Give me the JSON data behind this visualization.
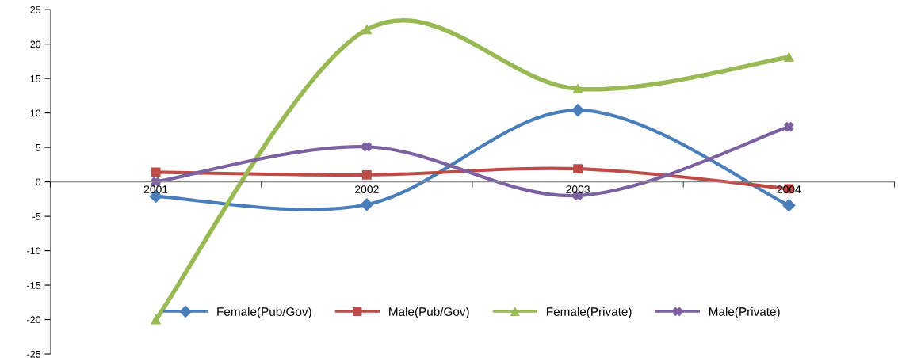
{
  "chart_data": {
    "type": "line",
    "categories": [
      "2001",
      "2002",
      "2003",
      "2004"
    ],
    "series": [
      {
        "name": "Female(Pub/Gov)",
        "color": "#4a7ebb",
        "marker": "diamond",
        "values": [
          -2.1,
          -3.3,
          10.4,
          -3.4
        ]
      },
      {
        "name": "Male(Pub/Gov)",
        "color": "#be4b48",
        "marker": "square",
        "values": [
          1.4,
          1.0,
          1.9,
          -1.0
        ]
      },
      {
        "name": "Female(Private)",
        "color": "#98b954",
        "marker": "triangle",
        "values": [
          -20,
          22.1,
          13.5,
          18.1
        ]
      },
      {
        "name": "Male(Private)",
        "color": "#7d60a0",
        "marker": "cross",
        "values": [
          0,
          5.1,
          -2.0,
          8.0
        ]
      }
    ],
    "ylim": [
      -25,
      25
    ],
    "yticks": [
      -25,
      -20,
      -15,
      -10,
      -5,
      0,
      5,
      10,
      15,
      20,
      25
    ],
    "grid": false,
    "legend": "bottom",
    "line_style": "solid"
  }
}
